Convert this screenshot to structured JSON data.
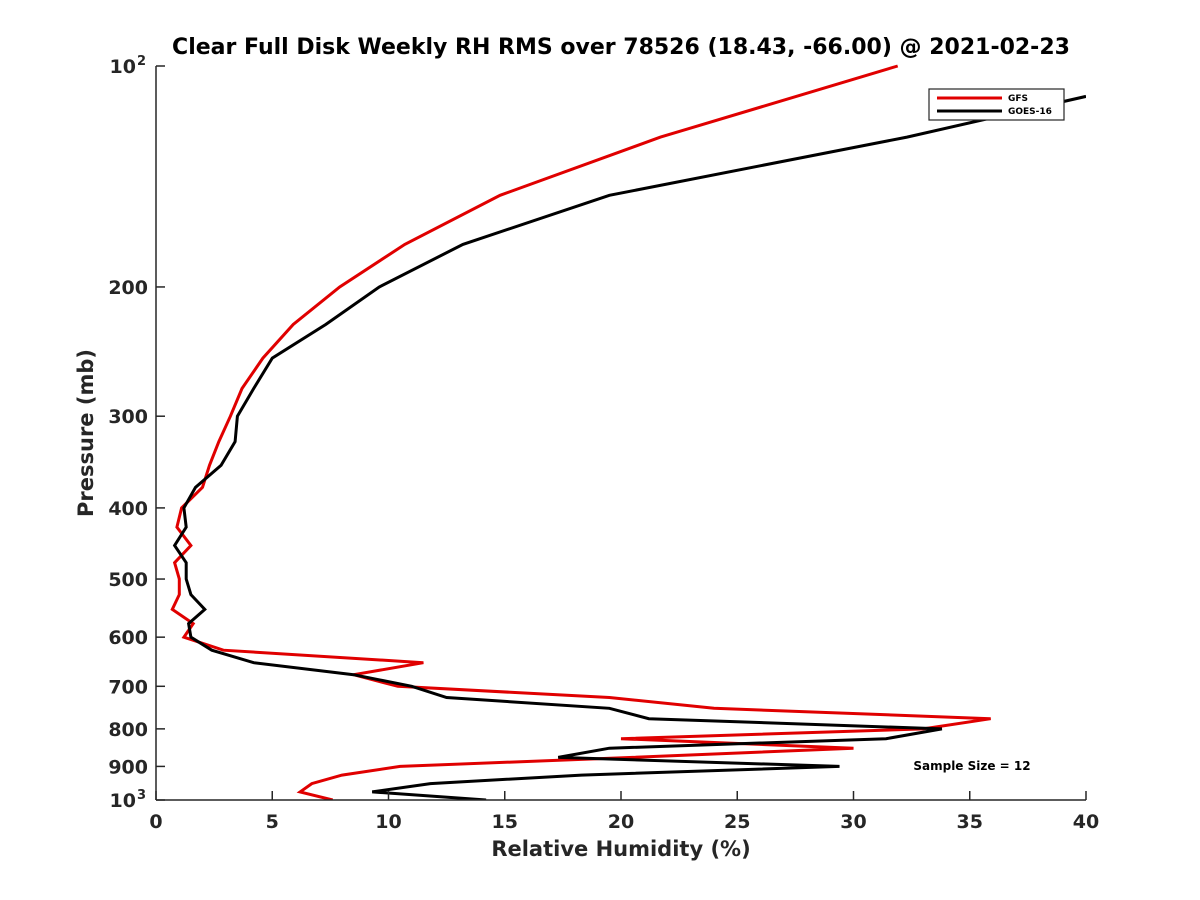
{
  "chart_data": {
    "type": "line",
    "title": "Clear Full Disk Weekly RH RMS over 78526 (18.43, -66.00) @ 2021-02-23",
    "xlabel": "Relative Humidity (%)",
    "ylabel": "Pressure (mb)",
    "xlim": [
      0,
      40
    ],
    "ylim": [
      100,
      1000
    ],
    "y_scale": "log",
    "y_reversed": true,
    "grid": false,
    "legend_position": "top-right",
    "x_ticks": [
      0,
      5,
      10,
      15,
      20,
      25,
      30,
      35,
      40
    ],
    "x_tick_labels": [
      "0",
      "5",
      "10",
      "15",
      "20",
      "25",
      "30",
      "35",
      "40"
    ],
    "y_ticks": [
      100,
      200,
      300,
      400,
      500,
      600,
      700,
      800,
      900,
      1000
    ],
    "y_tick_labels": [
      "10²",
      "200",
      "300",
      "400",
      "500",
      "600",
      "700",
      "800",
      "900",
      "10³"
    ],
    "annotation": "Sample Size = 12",
    "series": [
      {
        "name": "GFS",
        "color": "#e00000",
        "points": [
          [
            31.9,
            100
          ],
          [
            21.7,
            125
          ],
          [
            14.8,
            150
          ],
          [
            10.7,
            175
          ],
          [
            7.9,
            200
          ],
          [
            5.9,
            225
          ],
          [
            4.6,
            250
          ],
          [
            3.7,
            275
          ],
          [
            3.2,
            300
          ],
          [
            2.7,
            325
          ],
          [
            2.3,
            350
          ],
          [
            2.0,
            375
          ],
          [
            1.1,
            400
          ],
          [
            0.9,
            425
          ],
          [
            1.5,
            450
          ],
          [
            0.8,
            475
          ],
          [
            1.0,
            500
          ],
          [
            1.0,
            525
          ],
          [
            0.7,
            550
          ],
          [
            1.6,
            575
          ],
          [
            1.2,
            600
          ],
          [
            2.9,
            625
          ],
          [
            11.5,
            650
          ],
          [
            8.5,
            675
          ],
          [
            10.4,
            700
          ],
          [
            19.5,
            725
          ],
          [
            24.0,
            750
          ],
          [
            35.9,
            775
          ],
          [
            33.0,
            800
          ],
          [
            20.0,
            825
          ],
          [
            30.0,
            850
          ],
          [
            20.5,
            875
          ],
          [
            10.5,
            900
          ],
          [
            8.0,
            925
          ],
          [
            6.7,
            950
          ],
          [
            6.2,
            975
          ],
          [
            7.6,
            1000
          ]
        ]
      },
      {
        "name": "GOES-16",
        "color": "#000000",
        "points": [
          [
            40.0,
            110
          ],
          [
            32.3,
            125
          ],
          [
            19.5,
            150
          ],
          [
            13.2,
            175
          ],
          [
            9.6,
            200
          ],
          [
            7.3,
            225
          ],
          [
            5.0,
            250
          ],
          [
            4.2,
            275
          ],
          [
            3.5,
            300
          ],
          [
            3.4,
            325
          ],
          [
            2.8,
            350
          ],
          [
            1.7,
            375
          ],
          [
            1.2,
            400
          ],
          [
            1.3,
            425
          ],
          [
            0.8,
            450
          ],
          [
            1.3,
            475
          ],
          [
            1.3,
            500
          ],
          [
            1.5,
            525
          ],
          [
            2.1,
            550
          ],
          [
            1.4,
            575
          ],
          [
            1.5,
            600
          ],
          [
            2.4,
            625
          ],
          [
            4.2,
            650
          ],
          [
            8.5,
            675
          ],
          [
            11.0,
            700
          ],
          [
            12.5,
            725
          ],
          [
            19.5,
            750
          ],
          [
            21.2,
            775
          ],
          [
            33.8,
            800
          ],
          [
            31.4,
            825
          ],
          [
            19.5,
            850
          ],
          [
            17.3,
            875
          ],
          [
            29.4,
            900
          ],
          [
            18.3,
            925
          ],
          [
            11.8,
            950
          ],
          [
            9.3,
            975
          ],
          [
            14.2,
            1000
          ]
        ]
      }
    ]
  }
}
